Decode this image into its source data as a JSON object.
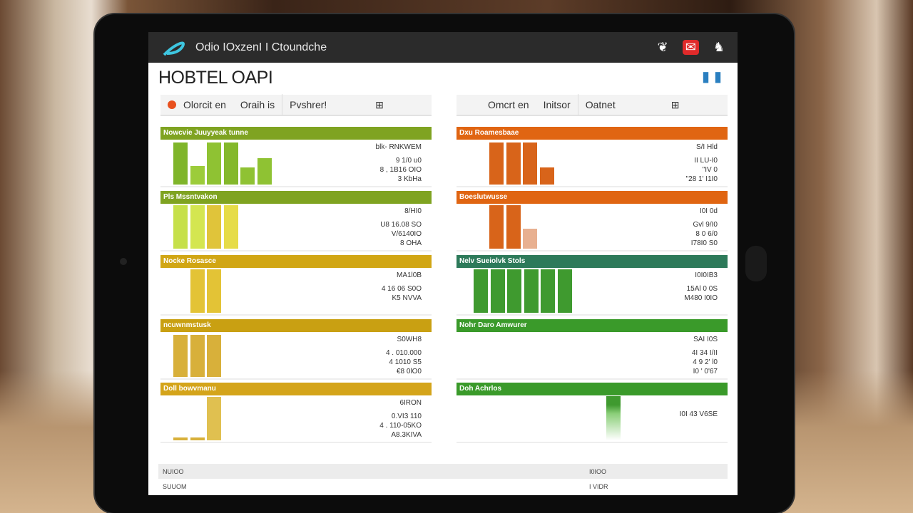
{
  "app": {
    "title": "Odio IOxzenI I Ctoundche",
    "page_title": "HOBTEL OAPI",
    "icons": [
      "bell-icon",
      "alert-icon",
      "user-icon"
    ]
  },
  "tabs_left": {
    "a": "Olorcit en",
    "b": "Oraih is",
    "c": "Pvshrer!"
  },
  "tabs_right": {
    "a": "Omcrt en",
    "b": "Initsor",
    "c": "Oatnet"
  },
  "panels_left": [
    {
      "title": "Nowcvie Juuyyeak tunne",
      "color": "#7fa321",
      "bars": [
        {
          "h": 0.95,
          "c": "#7fb52a"
        },
        {
          "h": 0.42,
          "c": "#9ccc3a"
        },
        {
          "h": 0.95,
          "c": "#8fc233"
        },
        {
          "h": 0.95,
          "c": "#84b82c"
        },
        {
          "h": 0.38,
          "c": "#8fc233"
        },
        {
          "h": 0.6,
          "c": "#8fc233"
        }
      ],
      "values": [
        "blk- RNKWEM",
        "9 1/0 u0",
        "8 , 1B16 OIO",
        "3 KbHa"
      ]
    },
    {
      "title": "Pls Mssntvakon",
      "color": "#7fa321",
      "bars": [
        {
          "h": 0.98,
          "c": "#c6e04a"
        },
        {
          "h": 0.98,
          "c": "#d4e650"
        },
        {
          "h": 0.98,
          "c": "#e0c43a"
        },
        {
          "h": 0.98,
          "c": "#e6dc48"
        }
      ],
      "values": [
        "8/HI0",
        "U8 16.08 SO",
        "V/6140IO",
        "8 OHA"
      ]
    },
    {
      "title": "Nocke Rosasce",
      "color": "#d1a614",
      "bars": [
        {
          "h": 0,
          "c": "#e0c43a"
        },
        {
          "h": 0.98,
          "c": "#e3c336"
        },
        {
          "h": 0.98,
          "c": "#e3c336"
        }
      ],
      "values": [
        "MA1l0B",
        "4 16 06 S0O",
        "K5 NVVA"
      ]
    },
    {
      "title": "ncuwnmstusk",
      "color": "#c9a012",
      "bars": [
        {
          "h": 0.95,
          "c": "#d8b03a"
        },
        {
          "h": 0.95,
          "c": "#d8b03a"
        },
        {
          "h": 0.95,
          "c": "#d8b03a"
        }
      ],
      "values": [
        "S0WH8",
        "4 . 010.000",
        "4 1010 S5",
        "€8 0lO0"
      ]
    },
    {
      "title": "Doll bowvmanu",
      "color": "#d4a41a",
      "bars": [
        {
          "h": 0.06,
          "c": "#d8b03a"
        },
        {
          "h": 0.06,
          "c": "#d8b03a"
        },
        {
          "h": 0.98,
          "c": "#e0c050"
        }
      ],
      "values": [
        "6IRON",
        "0.VI3 110",
        "4 . 110-05KO",
        "A8.3KIVA"
      ]
    }
  ],
  "panels_right": [
    {
      "title": "Dxu Roamesbaae",
      "color": "#e06512",
      "bars": [
        {
          "h": 0.95,
          "c": "#d8641a"
        },
        {
          "h": 0.95,
          "c": "#d8641a"
        },
        {
          "h": 0.95,
          "c": "#d8641a"
        },
        {
          "h": 0.38,
          "c": "#d8641a"
        }
      ],
      "values": [
        "S/I Hld",
        "II LU-I0",
        "\"IV 0",
        "\"28 1' I1I0"
      ]
    },
    {
      "title": "Boeslutwusse",
      "color": "#e06512",
      "bars": [
        {
          "h": 0.98,
          "c": "#d8641a"
        },
        {
          "h": 0.98,
          "c": "#d8641a"
        },
        {
          "h": 0.45,
          "c": "#e8b090"
        }
      ],
      "values": [
        "I0I 0d",
        "Gvl 9/I0",
        "8 0 6/0",
        "I78I0 S0"
      ]
    },
    {
      "title": "Nelv Sueiolvk Stols",
      "color": "#2d7a5a",
      "bars": [
        {
          "h": 0.98,
          "c": "#3f9a2f"
        },
        {
          "h": 0.98,
          "c": "#3f9a2f"
        },
        {
          "h": 0.98,
          "c": "#3f9a2f"
        },
        {
          "h": 0.98,
          "c": "#3f9a2f"
        },
        {
          "h": 0.98,
          "c": "#3f9a2f"
        },
        {
          "h": 0.98,
          "c": "#3f9a2f"
        }
      ],
      "values": [
        "I0I0IB3",
        "15Al 0 0S",
        "M480 I0IO"
      ]
    },
    {
      "title": "Nohr Daro Amwurer",
      "color": "#3a9a2a",
      "bars": [],
      "values": [
        "SAI I0S",
        "4I 34 I/II",
        "4 9 2' l0",
        "I0 ' 0'67"
      ]
    },
    {
      "title": "Doh Achrlos",
      "color": "#3a9a2a",
      "bars": [
        {
          "h": 0,
          "c": "#3f9a2f"
        },
        {
          "h": 0,
          "c": "#3f9a2f"
        },
        {
          "h": 0,
          "c": "#3f9a2f"
        },
        {
          "h": 0,
          "c": "#3f9a2f"
        },
        {
          "h": 0,
          "c": "#3f9a2f"
        },
        {
          "h": 0.98,
          "c": "#5aae4a"
        }
      ],
      "values": [
        "I0I 43 V6SE"
      ]
    }
  ],
  "table": {
    "header": [
      "NUIOO",
      "I0IOO"
    ],
    "rows": [
      [
        "SUUOM",
        "I VIDR"
      ]
    ]
  }
}
